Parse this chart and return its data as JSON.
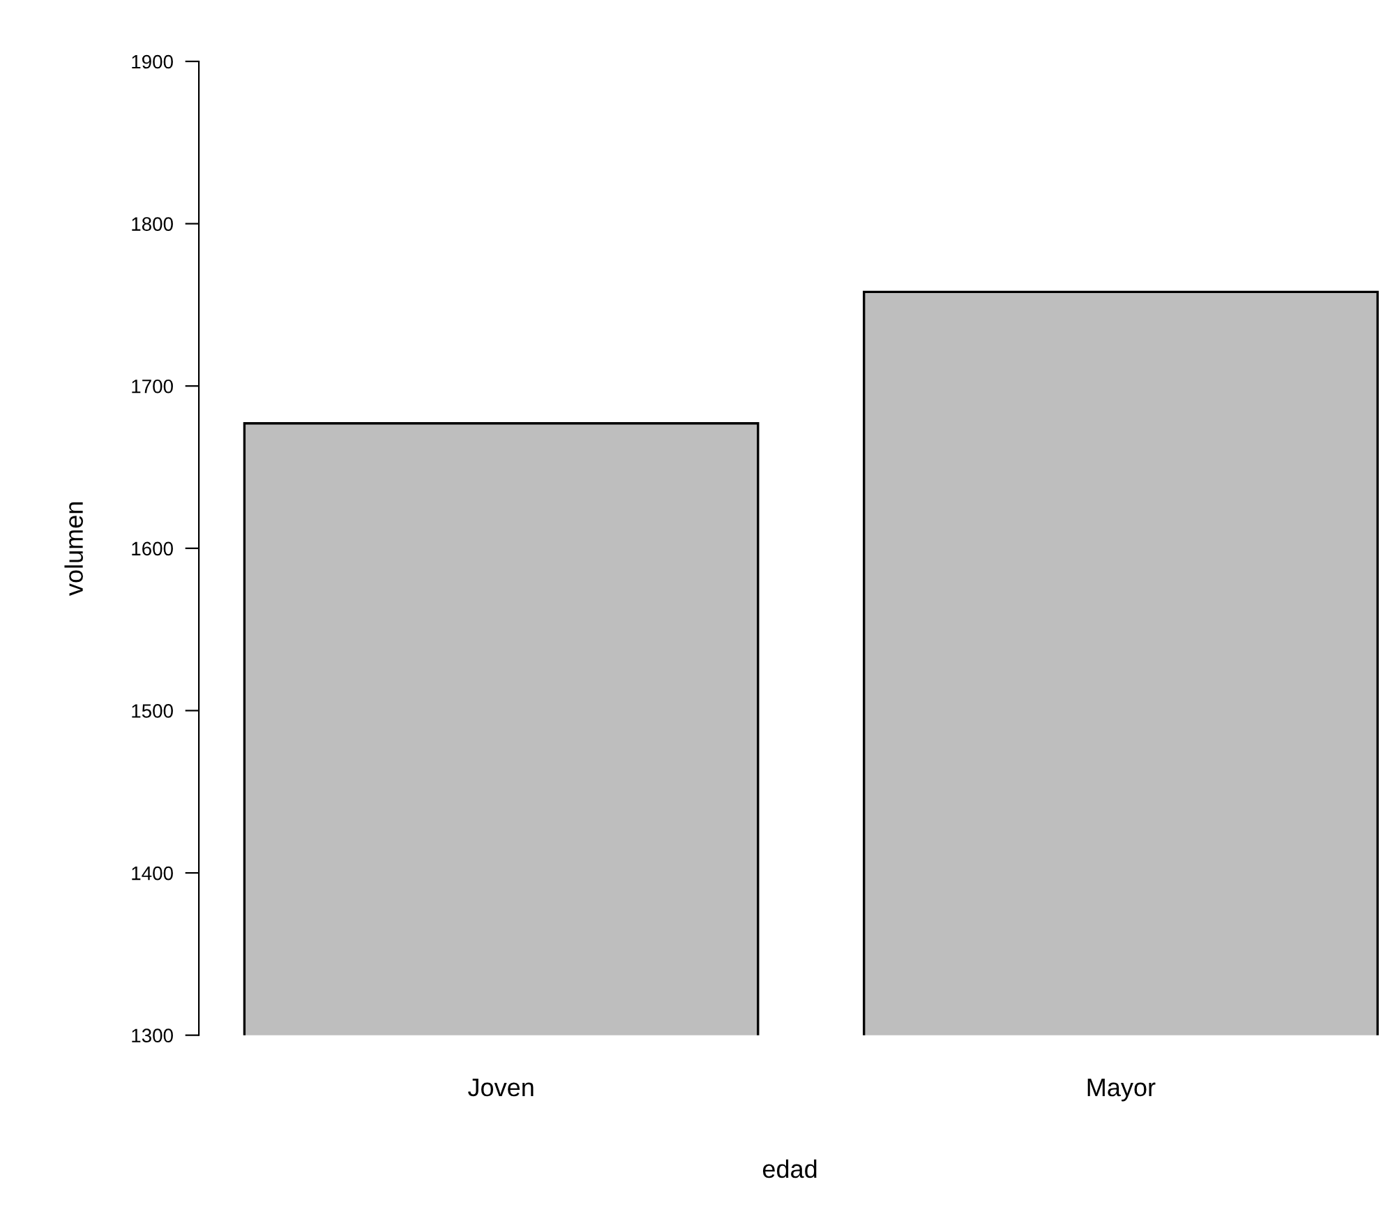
{
  "chart_data": {
    "type": "bar",
    "xlabel": "edad",
    "ylabel": "volumen",
    "categories": [
      "Joven",
      "Mayor"
    ],
    "values": [
      1677,
      1758
    ],
    "color": "#bebebe",
    "ylim": [
      1300,
      1900
    ],
    "yticks": [
      1300,
      1400,
      1500,
      1600,
      1700,
      1800,
      1900
    ],
    "grid": false,
    "legend": false
  }
}
